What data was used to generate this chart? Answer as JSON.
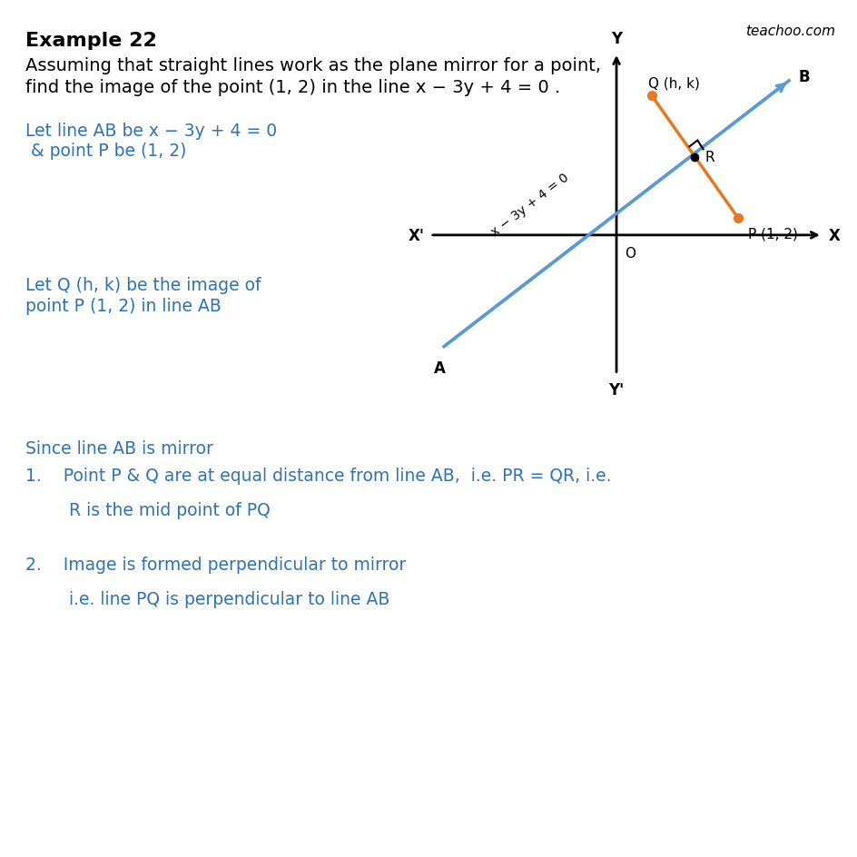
{
  "title": "Example 22",
  "problem_line1": "Assuming that straight lines work as the plane mirror for a point,",
  "problem_line2": "find the image of the point (1, 2) in the line x − 3y + 4 = 0 .",
  "left_text_1a": "Let line AB be x − 3y + 4 = 0",
  "left_text_1b": " & point P be (1, 2)",
  "left_text_2a": "Let Q (h, k) be the image of",
  "left_text_2b": "point P (1, 2) in line AB",
  "since_text": "Since line AB is mirror",
  "point1a": "1.    Point P & Q are at equal distance from line AB,  i.e. PR = QR, i.e.",
  "point1b": "        R is the mid point of PQ",
  "point2a": "2.    Image is formed perpendicular to mirror",
  "point2b": "        i.e. line PQ is perpendicular to line AB",
  "teachoo_text": "teachoo.com",
  "blue_line_color": "#5B9BD5",
  "orange_color": "#E87722",
  "text_blue": "#2E74B5",
  "background": "#FFFFFF",
  "title_fontsize": 16,
  "body_fontsize": 14,
  "blue_text_fontsize": 13.5
}
